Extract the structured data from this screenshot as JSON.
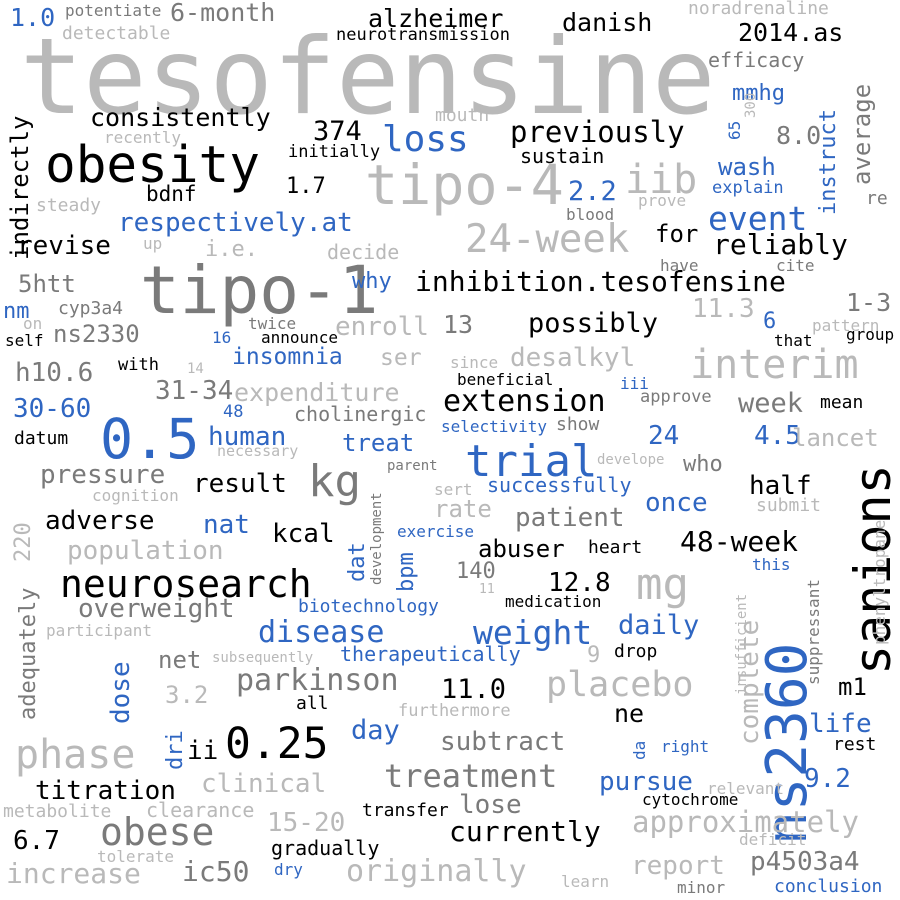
{
  "colors": {
    "black": "#000000",
    "gray": "#7a7a7a",
    "light_gray": "#b9b9b9",
    "blue": "#2f66c2",
    "background": "#ffffff"
  },
  "words": [
    "tesofensine",
    "tipo-1",
    "obesity",
    "tipo-4",
    "24-week",
    "ns2360",
    "sanions",
    "trial",
    "neurosearch",
    "kg",
    "mg",
    "0.5",
    "0.25",
    "interim",
    "placebo",
    "treatment",
    "phase",
    "obese",
    "inhibition.tesofensine",
    "extension",
    "weight",
    "disease",
    "parkinson",
    "loss",
    "consistently",
    "previously",
    "alzheimer",
    "danish",
    "2014.as",
    "1.0",
    "6-month",
    "neurotransmission",
    "noradrenaline",
    "potentiate",
    "detectable",
    "efficacy",
    "instruct",
    "average",
    "mmhg",
    "8.0",
    "65",
    "300",
    "mouth",
    "indirectly",
    "374",
    "iib",
    "sustain",
    "initially",
    "1.7",
    "bdnf",
    "2.2",
    "explain",
    "wash",
    "prove",
    "re",
    "blood",
    "steady",
    "recently",
    "event",
    "respectively.at",
    "revise",
    "up",
    "i.e.",
    "decide",
    "for",
    "reliably",
    "have",
    "cite",
    "why",
    "5htt",
    "1-3",
    "nm",
    "cyp3a4",
    "ns2330",
    "enroll",
    "13",
    "possibly",
    "11.3",
    "6",
    "on",
    "twice",
    "self",
    "16",
    "announce",
    "that",
    "pattern",
    "group",
    "h10.6",
    "insomnia",
    "ser",
    "since",
    "desalkyl",
    "with",
    "14",
    "31-34",
    "beneficial",
    "iii",
    "30-60",
    "expenditure",
    "48",
    "cholinergic",
    "approve",
    "week",
    "mean",
    "datum",
    "human",
    "necessary",
    "selectivity",
    "show",
    "24",
    "4.5",
    "lancet",
    "treat",
    "who",
    "pressure",
    "parent",
    "develope",
    "result",
    "half",
    "cognition",
    "sert",
    "successfully",
    "220",
    "rate",
    "submit",
    "adverse",
    "nat",
    "kcal",
    "exercise",
    "patient",
    "once",
    "development",
    "adequately",
    "population",
    "dat",
    "bpm",
    "abuser",
    "heart",
    "48-week",
    "phenyltropane",
    "140",
    "12.8",
    "this",
    "overweight",
    "biotechnology",
    "11",
    "medication",
    "suppressant",
    "insufficient",
    "participant",
    "daily",
    "complete",
    "dose",
    "net",
    "subsequently",
    "therapeutically",
    "9",
    "drop",
    "m1",
    "3.2",
    "11.0",
    "all",
    "furthermore",
    "ne",
    "life",
    "dri",
    "ii",
    "day",
    "subtract",
    "da",
    "right",
    "rest",
    "clinical",
    "titration",
    "pursue",
    "relevant",
    "9.2",
    "metabolite",
    "clearance",
    "transfer",
    "lose",
    "cytochrome",
    "6.7",
    "15-20",
    "currently",
    "approximately",
    "deficit",
    "gradually",
    "tolerate",
    "increase",
    "ic50",
    "dry",
    "originally",
    "report",
    "p4503a4",
    "learn",
    "minor",
    "conclusion"
  ]
}
